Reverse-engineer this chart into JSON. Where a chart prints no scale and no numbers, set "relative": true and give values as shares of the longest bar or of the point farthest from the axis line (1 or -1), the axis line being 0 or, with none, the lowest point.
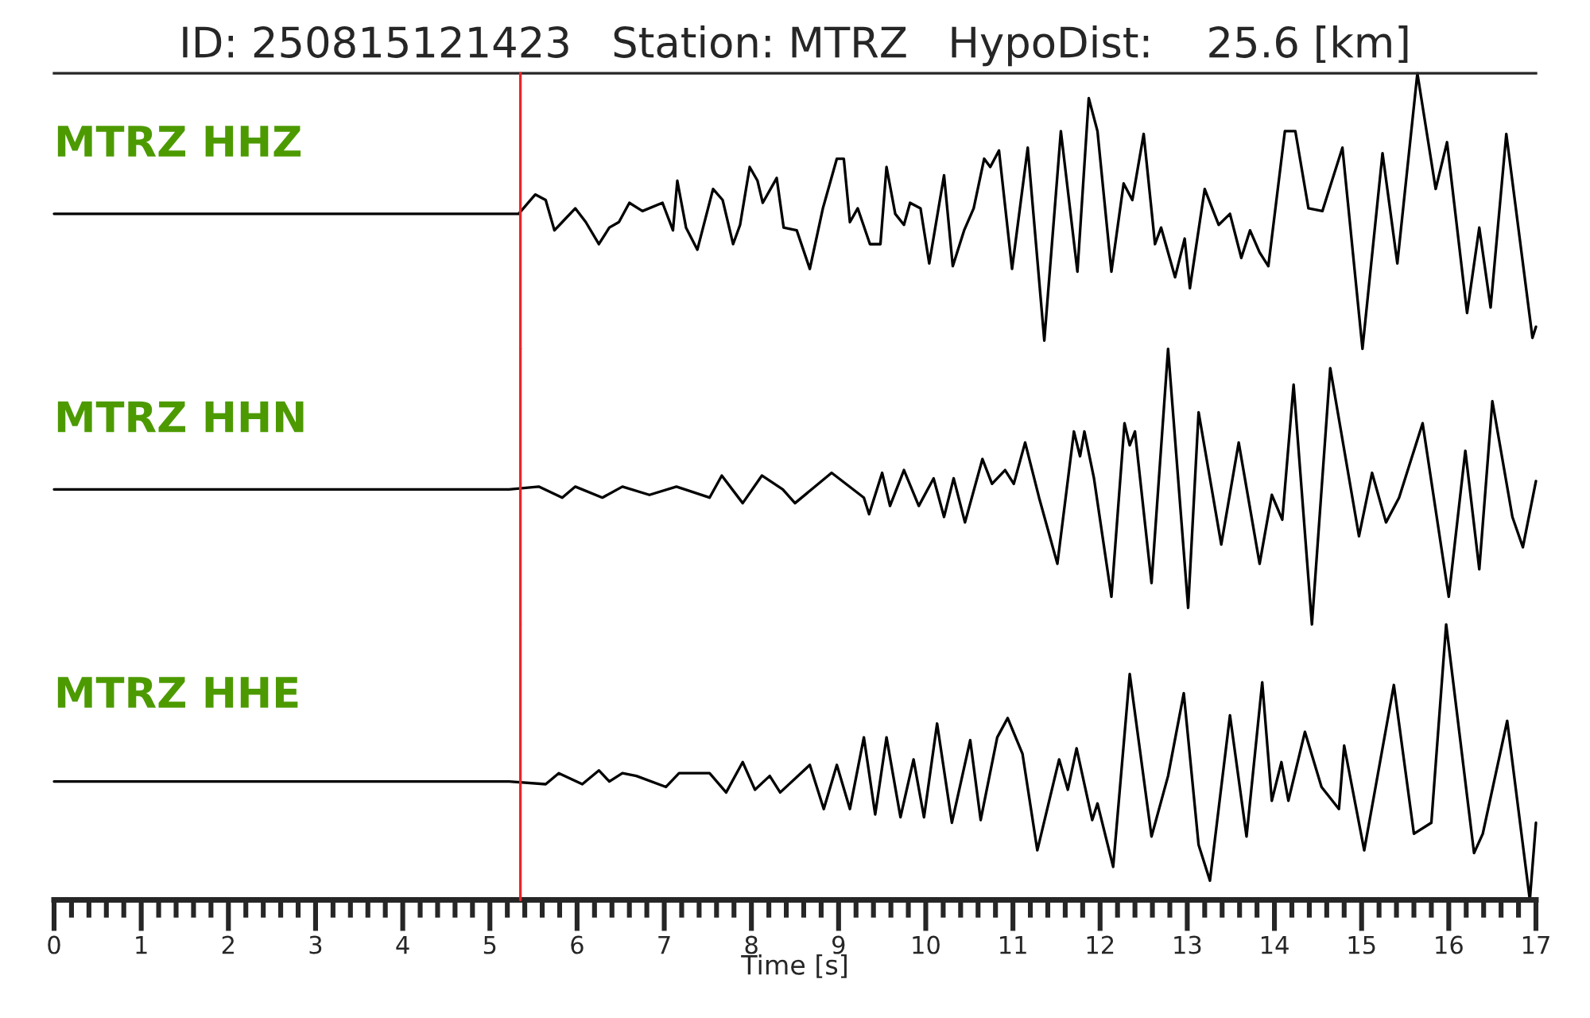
{
  "chart_data": [
    {
      "type": "line",
      "title": "ID: 250815121423   Station: MTRZ   HypoDist:    25.6 [km]",
      "relative": true,
      "xlim": [
        0,
        17
      ],
      "tick_labels": false,
      "grid": false,
      "ref_lines": [
        {
          "axis": "x",
          "value": 5.35,
          "color": "#e8262a"
        }
      ],
      "series": [
        {
          "name": "MTRZ HHZ",
          "color": "#000000",
          "x": [
            0,
            1,
            2,
            3,
            4,
            5,
            5.22,
            5.33,
            5.52,
            5.64,
            5.74,
            5.83,
            5.98,
            6.1,
            6.25,
            6.37,
            6.48,
            6.6,
            6.75,
            6.98,
            7.1,
            7.15,
            7.25,
            7.38,
            7.56,
            7.67,
            7.79,
            7.87,
            7.98,
            8.07,
            8.13,
            8.29,
            8.37,
            8.52,
            8.67,
            8.82,
            8.98,
            9.06,
            9.13,
            9.22,
            9.36,
            9.48,
            9.55,
            9.65,
            9.75,
            9.82,
            9.94,
            10.04,
            10.21,
            10.31,
            10.44,
            10.55,
            10.67,
            10.74,
            10.84,
            10.99,
            11.17,
            11.36,
            11.55,
            11.74,
            11.87,
            11.97,
            12.13,
            12.27,
            12.37,
            12.5,
            12.63,
            12.7,
            12.86,
            12.97,
            13.03,
            13.2,
            13.36,
            13.49,
            13.62,
            13.72,
            13.83,
            13.93,
            14.12,
            14.24,
            14.39,
            14.55,
            14.66,
            14.78,
            15.01,
            15.24,
            15.41,
            15.64,
            15.85,
            15.98,
            16.21,
            16.35,
            16.48,
            16.66,
            16.96,
            17.0
          ],
          "values": [
            0.49,
            0.49,
            0.49,
            0.49,
            0.49,
            0.49,
            0.49,
            0.49,
            0.56,
            0.54,
            0.43,
            0.46,
            0.51,
            0.46,
            0.38,
            0.44,
            0.46,
            0.53,
            0.5,
            0.53,
            0.43,
            0.61,
            0.44,
            0.36,
            0.58,
            0.54,
            0.38,
            0.45,
            0.66,
            0.61,
            0.53,
            0.62,
            0.44,
            0.43,
            0.29,
            0.51,
            0.69,
            0.69,
            0.46,
            0.51,
            0.38,
            0.38,
            0.66,
            0.49,
            0.45,
            0.53,
            0.51,
            0.31,
            0.63,
            0.3,
            0.43,
            0.51,
            0.69,
            0.66,
            0.72,
            0.29,
            0.73,
            0.03,
            0.79,
            0.28,
            0.91,
            0.79,
            0.28,
            0.6,
            0.54,
            0.78,
            0.38,
            0.44,
            0.26,
            0.4,
            0.22,
            0.58,
            0.45,
            0.49,
            0.33,
            0.43,
            0.35,
            0.3,
            0.79,
            0.79,
            0.51,
            0.5,
            0.61,
            0.73,
            0,
            0.71,
            0.31,
            1,
            0.58,
            0.75,
            0.13,
            0.44,
            0.15,
            0.78,
            0.04,
            0.08
          ]
        }
      ]
    },
    {
      "type": "line",
      "relative": true,
      "xlim": [
        0,
        17
      ],
      "tick_labels": false,
      "grid": false,
      "ref_lines": [
        {
          "axis": "x",
          "value": 5.35,
          "color": "#e8262a"
        }
      ],
      "series": [
        {
          "name": "MTRZ HHN",
          "color": "#000000",
          "x": [
            0,
            1,
            2,
            3,
            4,
            5,
            5.22,
            5.56,
            5.83,
            5.98,
            6.29,
            6.52,
            6.83,
            7.14,
            7.52,
            7.66,
            7.9,
            8.12,
            8.36,
            8.5,
            8.92,
            9.29,
            9.35,
            9.5,
            9.59,
            9.75,
            9.92,
            10.09,
            10.21,
            10.32,
            10.45,
            10.65,
            10.76,
            10.91,
            11.01,
            11.14,
            11.3,
            11.51,
            11.7,
            11.77,
            11.82,
            11.93,
            12.13,
            12.28,
            12.34,
            12.4,
            12.59,
            12.78,
            13.01,
            13.13,
            13.39,
            13.59,
            13.83,
            13.97,
            14.09,
            14.22,
            14.43,
            14.64,
            14.97,
            15.12,
            15.28,
            15.43,
            15.7,
            16.0,
            16.19,
            16.35,
            16.5,
            16.73,
            16.85,
            17.0
          ],
          "values": [
            0.49,
            0.49,
            0.49,
            0.49,
            0.49,
            0.49,
            0.49,
            0.5,
            0.46,
            0.5,
            0.46,
            0.5,
            0.47,
            0.5,
            0.46,
            0.54,
            0.44,
            0.54,
            0.49,
            0.44,
            0.55,
            0.46,
            0.4,
            0.55,
            0.43,
            0.56,
            0.43,
            0.53,
            0.39,
            0.53,
            0.37,
            0.6,
            0.51,
            0.56,
            0.51,
            0.66,
            0.46,
            0.22,
            0.7,
            0.61,
            0.7,
            0.53,
            0.1,
            0.73,
            0.65,
            0.7,
            0.15,
            1,
            0.06,
            0.77,
            0.29,
            0.66,
            0.22,
            0.47,
            0.38,
            0.87,
            0,
            0.93,
            0.32,
            0.55,
            0.37,
            0.46,
            0.73,
            0.1,
            0.63,
            0.2,
            0.81,
            0.39,
            0.28,
            0.52
          ]
        }
      ]
    },
    {
      "type": "line",
      "relative": true,
      "xlim": [
        0,
        17
      ],
      "xlabel": "Time [s]",
      "tick_labels": "x",
      "grid": false,
      "xticks": [
        0,
        {
          "value": 0.2,
          "label": null
        },
        {
          "value": 0.4,
          "label": null
        },
        {
          "value": 0.6,
          "label": null
        },
        {
          "value": 0.8,
          "label": null
        },
        1,
        {
          "value": 1.2,
          "label": null
        },
        {
          "value": 1.4,
          "label": null
        },
        {
          "value": 1.6,
          "label": null
        },
        {
          "value": 1.8,
          "label": null
        },
        2,
        {
          "value": 2.2,
          "label": null
        },
        {
          "value": 2.4,
          "label": null
        },
        {
          "value": 2.6,
          "label": null
        },
        {
          "value": 2.8,
          "label": null
        },
        3,
        {
          "value": 3.2,
          "label": null
        },
        {
          "value": 3.4,
          "label": null
        },
        {
          "value": 3.6,
          "label": null
        },
        {
          "value": 3.8,
          "label": null
        },
        4,
        {
          "value": 4.2,
          "label": null
        },
        {
          "value": 4.4,
          "label": null
        },
        {
          "value": 4.6,
          "label": null
        },
        {
          "value": 4.8,
          "label": null
        },
        5,
        {
          "value": 5.2,
          "label": null
        },
        {
          "value": 5.4,
          "label": null
        },
        {
          "value": 5.6,
          "label": null
        },
        {
          "value": 5.8,
          "label": null
        },
        6,
        {
          "value": 6.2,
          "label": null
        },
        {
          "value": 6.4,
          "label": null
        },
        {
          "value": 6.6,
          "label": null
        },
        {
          "value": 6.8,
          "label": null
        },
        7,
        {
          "value": 7.2,
          "label": null
        },
        {
          "value": 7.4,
          "label": null
        },
        {
          "value": 7.6,
          "label": null
        },
        {
          "value": 7.8,
          "label": null
        },
        8,
        {
          "value": 8.2,
          "label": null
        },
        {
          "value": 8.4,
          "label": null
        },
        {
          "value": 8.6,
          "label": null
        },
        {
          "value": 8.8,
          "label": null
        },
        9,
        {
          "value": 9.2,
          "label": null
        },
        {
          "value": 9.4,
          "label": null
        },
        {
          "value": 9.6,
          "label": null
        },
        {
          "value": 9.8,
          "label": null
        },
        10,
        {
          "value": 10.2,
          "label": null
        },
        {
          "value": 10.4,
          "label": null
        },
        {
          "value": 10.6,
          "label": null
        },
        {
          "value": 10.8,
          "label": null
        },
        11,
        {
          "value": 11.2,
          "label": null
        },
        {
          "value": 11.4,
          "label": null
        },
        {
          "value": 11.6,
          "label": null
        },
        {
          "value": 11.8,
          "label": null
        },
        12,
        {
          "value": 12.2,
          "label": null
        },
        {
          "value": 12.4,
          "label": null
        },
        {
          "value": 12.6,
          "label": null
        },
        {
          "value": 12.8,
          "label": null
        },
        13,
        {
          "value": 13.2,
          "label": null
        },
        {
          "value": 13.4,
          "label": null
        },
        {
          "value": 13.6,
          "label": null
        },
        {
          "value": 13.8,
          "label": null
        },
        14,
        {
          "value": 14.2,
          "label": null
        },
        {
          "value": 14.4,
          "label": null
        },
        {
          "value": 14.6,
          "label": null
        },
        {
          "value": 14.8,
          "label": null
        },
        15,
        {
          "value": 15.2,
          "label": null
        },
        {
          "value": 15.4,
          "label": null
        },
        {
          "value": 15.6,
          "label": null
        },
        {
          "value": 15.8,
          "label": null
        },
        16,
        {
          "value": 16.2,
          "label": null
        },
        {
          "value": 16.4,
          "label": null
        },
        {
          "value": 16.6,
          "label": null
        },
        {
          "value": 16.8,
          "label": null
        },
        17
      ],
      "ref_lines": [
        {
          "axis": "x",
          "value": 5.35,
          "color": "#e8262a"
        }
      ],
      "series": [
        {
          "name": "MTRZ HHE",
          "color": "#000000",
          "x": [
            0,
            1,
            2,
            3,
            4,
            5,
            5.22,
            5.64,
            5.79,
            6.06,
            6.25,
            6.37,
            6.52,
            6.68,
            7.02,
            7.17,
            7.52,
            7.71,
            7.9,
            8.04,
            8.21,
            8.33,
            8.67,
            8.83,
            8.98,
            9.13,
            9.29,
            9.42,
            9.55,
            9.71,
            9.86,
            9.98,
            10.13,
            10.3,
            10.51,
            10.63,
            10.82,
            10.94,
            11.11,
            11.28,
            11.53,
            11.63,
            11.73,
            11.91,
            11.97,
            12.15,
            12.34,
            12.59,
            12.78,
            12.96,
            13.13,
            13.26,
            13.49,
            13.68,
            13.86,
            13.97,
            14.08,
            14.16,
            14.35,
            14.54,
            14.74,
            14.8,
            15.03,
            15.37,
            15.6,
            15.8,
            15.97,
            16.29,
            16.39,
            16.67,
            16.93,
            17.0
          ],
          "values": [
            0.43,
            0.43,
            0.43,
            0.43,
            0.43,
            0.43,
            0.43,
            0.42,
            0.46,
            0.42,
            0.47,
            0.43,
            0.46,
            0.45,
            0.41,
            0.46,
            0.46,
            0.39,
            0.5,
            0.4,
            0.45,
            0.39,
            0.49,
            0.33,
            0.49,
            0.33,
            0.59,
            0.31,
            0.59,
            0.3,
            0.51,
            0.3,
            0.64,
            0.28,
            0.58,
            0.29,
            0.59,
            0.66,
            0.53,
            0.18,
            0.51,
            0.4,
            0.55,
            0.29,
            0.35,
            0.12,
            0.82,
            0.23,
            0.45,
            0.75,
            0.2,
            0.07,
            0.67,
            0.23,
            0.79,
            0.36,
            0.5,
            0.36,
            0.61,
            0.41,
            0.33,
            0.56,
            0.18,
            0.78,
            0.24,
            0.28,
            1,
            0.17,
            0.24,
            0.65,
            0,
            0.28
          ]
        }
      ]
    }
  ]
}
